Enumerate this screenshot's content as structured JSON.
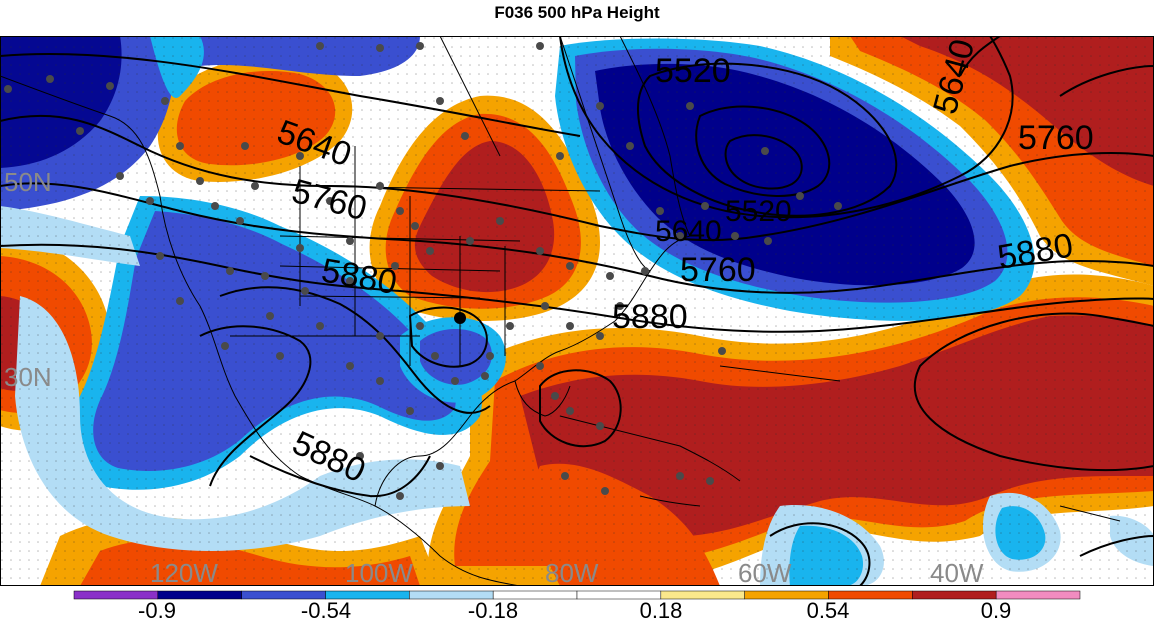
{
  "title": "F036 500 hPa Height",
  "lat_labels": [
    "50N",
    "30N"
  ],
  "lon_labels": [
    "120W",
    "100W",
    "80W",
    "60W",
    "40W"
  ],
  "contour_labels": [
    "5520",
    "5640",
    "5760",
    "5880"
  ],
  "colorbar": {
    "ticks": [
      "-0.9",
      "-0.54",
      "-0.18",
      "0.18",
      "0.54",
      "0.9"
    ],
    "colors": [
      "#8a30c8",
      "#00008b",
      "#3a4fd0",
      "#19b4ee",
      "#b3ddf5",
      "#ffffff",
      "#ffffff",
      "#fbe88c",
      "#f5a300",
      "#f04a00",
      "#b01e1e",
      "#f28cc0"
    ]
  },
  "palette": {
    "deep_blue": "#00008b",
    "royal_blue": "#3a4fd0",
    "cyan": "#19b4ee",
    "light_blue": "#b3ddf5",
    "light_yellow": "#fbe88c",
    "orange": "#f5a300",
    "red_orange": "#f04a00",
    "dark_red": "#b01e1e"
  }
}
